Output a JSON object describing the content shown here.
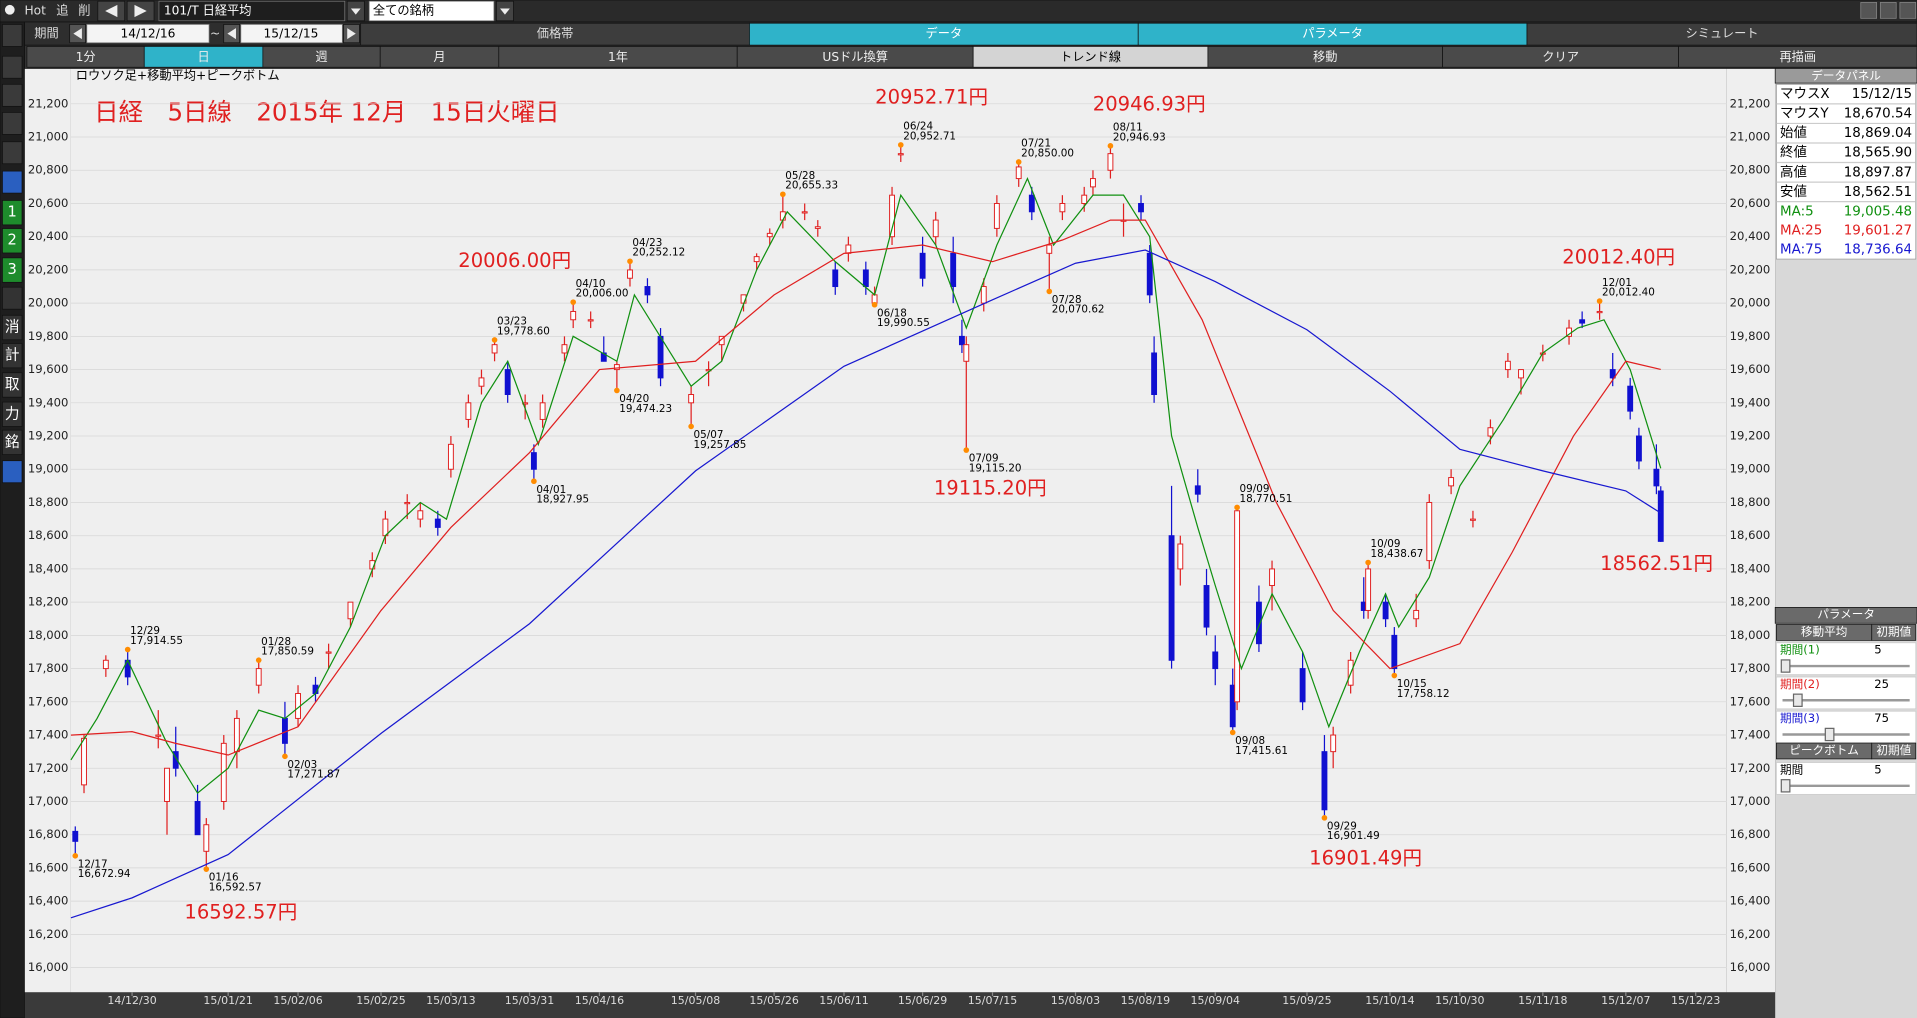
{
  "toolbar": {
    "hot": "Hot",
    "add": "追",
    "del": "削",
    "symbol": "101/T 日経平均",
    "group": "全ての銘柄",
    "period_label": "期間",
    "from": "14/12/16",
    "sep": "~",
    "to": "15/12/15"
  },
  "tabs": [
    "価格帯",
    "データ",
    "パラメータ",
    "シミュレート"
  ],
  "buttons": [
    "1分",
    "日",
    "週",
    "月",
    "1年",
    "USドル換算",
    "トレンド線",
    "移動",
    "クリア",
    "再描画"
  ],
  "side_icons": [
    "1",
    "2",
    "3",
    "消",
    "計",
    "取",
    "力",
    "銘"
  ],
  "chart_data": {
    "type": "candlestick",
    "title": "日経　5日線　2015年 12月　15日火曜日",
    "subtitle": "ロウソク足+移動平均+ピークボトム",
    "xlim": [
      "14/12/16",
      "15/12/30"
    ],
    "ylim": [
      15851,
      21413
    ],
    "grid": true,
    "up_color": "#e02020",
    "down_color": "#1010d0",
    "peak_color": "#ff8c00",
    "xticks": [
      "14/12/30",
      "15/01/21",
      "15/02/06",
      "15/02/25",
      "15/03/13",
      "15/03/31",
      "15/04/16",
      "15/05/08",
      "15/05/26",
      "15/06/11",
      "15/06/29",
      "15/07/15",
      "15/08/03",
      "15/08/19",
      "15/09/04",
      "15/09/25",
      "15/10/14",
      "15/10/30",
      "15/11/18",
      "15/12/07",
      "15/12/23"
    ],
    "yticks": [
      {
        "value": 16000,
        "label": "16,000"
      },
      {
        "value": 16200,
        "label": "16,200"
      },
      {
        "value": 16400,
        "label": "16,400"
      },
      {
        "value": 16600,
        "label": "16,600"
      },
      {
        "value": 16800,
        "label": "16,800"
      },
      {
        "value": 17000,
        "label": "17,000"
      },
      {
        "value": 17200,
        "label": "17,200"
      },
      {
        "value": 17400,
        "label": "17,400"
      },
      {
        "value": 17600,
        "label": "17,600"
      },
      {
        "value": 17800,
        "label": "17,800"
      },
      {
        "value": 18000,
        "label": "18,000"
      },
      {
        "value": 18200,
        "label": "18,200"
      },
      {
        "value": 18400,
        "label": "18,400"
      },
      {
        "value": 18600,
        "label": "18,600"
      },
      {
        "value": 18800,
        "label": "18,800"
      },
      {
        "value": 19000,
        "label": "19,000"
      },
      {
        "value": 19200,
        "label": "19,200"
      },
      {
        "value": 19400,
        "label": "19,400"
      },
      {
        "value": 19600,
        "label": "19,600"
      },
      {
        "value": 19800,
        "label": "19,800"
      },
      {
        "value": 20000,
        "label": "20,000"
      },
      {
        "value": 20200,
        "label": "20,200"
      },
      {
        "value": 20400,
        "label": "20,400"
      },
      {
        "value": 20600,
        "label": "20,600"
      },
      {
        "value": 20800,
        "label": "20,800"
      },
      {
        "value": 21000,
        "label": "21,000"
      },
      {
        "value": 21200,
        "label": "21,200"
      }
    ],
    "x": [
      "14/12/17",
      "14/12/19",
      "14/12/24",
      "14/12/29",
      "15/01/05",
      "15/01/07",
      "15/01/09",
      "15/01/14",
      "15/01/16",
      "15/01/20",
      "15/01/23",
      "15/01/28",
      "15/02/03",
      "15/02/06",
      "15/02/10",
      "15/02/13",
      "15/02/18",
      "15/02/23",
      "15/02/26",
      "15/03/03",
      "15/03/06",
      "15/03/10",
      "15/03/13",
      "15/03/17",
      "15/03/20",
      "15/03/23",
      "15/03/26",
      "15/03/30",
      "15/04/01",
      "15/04/03",
      "15/04/08",
      "15/04/10",
      "15/04/14",
      "15/04/17",
      "15/04/20",
      "15/04/23",
      "15/04/27",
      "15/04/30",
      "15/05/07",
      "15/05/11",
      "15/05/14",
      "15/05/19",
      "15/05/22",
      "15/05/25",
      "15/05/28",
      "15/06/02",
      "15/06/05",
      "15/06/09",
      "15/06/12",
      "15/06/16",
      "15/06/18",
      "15/06/22",
      "15/06/24",
      "15/06/29",
      "15/07/02",
      "15/07/06",
      "15/07/08",
      "15/07/09",
      "15/07/13",
      "15/07/16",
      "15/07/21",
      "15/07/24",
      "15/07/28",
      "15/07/31",
      "15/08/05",
      "15/08/07",
      "15/08/11",
      "15/08/14",
      "15/08/18",
      "15/08/20",
      "15/08/21",
      "15/08/25",
      "15/08/27",
      "15/08/31",
      "15/09/02",
      "15/09/04",
      "15/09/08",
      "15/09/09",
      "15/09/14",
      "15/09/17",
      "15/09/24",
      "15/09/29",
      "15/10/01",
      "15/10/05",
      "15/10/08",
      "15/10/09",
      "15/10/13",
      "15/10/15",
      "15/10/20",
      "15/10/23",
      "15/10/28",
      "15/11/02",
      "15/11/06",
      "15/11/10",
      "15/11/13",
      "15/11/18",
      "15/11/24",
      "15/11/27",
      "15/12/01",
      "15/12/04",
      "15/12/08",
      "15/12/10",
      "15/12/14",
      "15/12/15"
    ],
    "open": [
      16820,
      17100,
      17800,
      17850,
      17400,
      17000,
      17300,
      17000,
      16700,
      17000,
      17300,
      17700,
      17500,
      17500,
      17700,
      17900,
      18100,
      18400,
      18600,
      18800,
      18700,
      18700,
      19000,
      19300,
      19500,
      19700,
      19600,
      19400,
      19100,
      19300,
      19700,
      19900,
      19900,
      19700,
      19600,
      20150,
      20100,
      19800,
      19400,
      19600,
      19750,
      20000,
      20250,
      20400,
      20500,
      20550,
      20450,
      20200,
      20300,
      20200,
      20000,
      20400,
      20900,
      20300,
      20400,
      20300,
      19800,
      19650,
      20000,
      20450,
      20750,
      20650,
      20300,
      20550,
      20600,
      20700,
      20800,
      20500,
      20600,
      20300,
      19700,
      18600,
      18400,
      18900,
      18300,
      17900,
      17700,
      17600,
      18200,
      18300,
      17800,
      17300,
      17300,
      17700,
      18200,
      18150,
      18200,
      18000,
      18100,
      18450,
      18900,
      18700,
      19200,
      19600,
      19550,
      19700,
      19800,
      19900,
      19950,
      19600,
      19500,
      19200,
      19000,
      18869.04
    ],
    "high": [
      16850,
      17400,
      17880,
      17914.55,
      17550,
      17200,
      17450,
      17100,
      16900,
      17400,
      17550,
      17850.59,
      17600,
      17700,
      17750,
      17950,
      18200,
      18500,
      18750,
      18850,
      18800,
      18750,
      19200,
      19450,
      19600,
      19778.6,
      19650,
      19450,
      19150,
      19450,
      19800,
      20006,
      19950,
      19800,
      19650,
      20252.12,
      20150,
      19850,
      19500,
      19650,
      19800,
      20050,
      20300,
      20450,
      20655.33,
      20600,
      20500,
      20250,
      20400,
      20250,
      20100,
      20700,
      20952.71,
      20400,
      20550,
      20400,
      19900,
      19800,
      20150,
      20650,
      20850,
      20700,
      20400,
      20650,
      20700,
      20800,
      20946.93,
      20600,
      20650,
      20350,
      19800,
      18900,
      18600,
      19000,
      18400,
      18000,
      17800,
      18770.51,
      18300,
      18450,
      17900,
      17400,
      17450,
      17900,
      18350,
      18438.67,
      18250,
      18050,
      18250,
      18850,
      19000,
      18750,
      19300,
      19700,
      19600,
      19750,
      19900,
      19950,
      20012.4,
      19700,
      19550,
      19250,
      19150,
      18897.87
    ],
    "low": [
      16672.94,
      17050,
      17750,
      17700,
      17320,
      16800,
      17150,
      16800,
      16592.57,
      16950,
      17200,
      17650,
      17271.87,
      17450,
      17600,
      17800,
      18050,
      18350,
      18550,
      18700,
      18650,
      18600,
      18950,
      19250,
      19450,
      19650,
      19400,
      19300,
      18927.95,
      19250,
      19650,
      19850,
      19850,
      19650,
      19474.23,
      20100,
      20000,
      19500,
      19257.85,
      19500,
      19650,
      19950,
      20200,
      20350,
      20450,
      20500,
      20400,
      20050,
      20250,
      20050,
      19990.55,
      20350,
      20850,
      20100,
      20350,
      20000,
      19700,
      19115.2,
      19950,
      20400,
      20700,
      20500,
      20070.62,
      20500,
      20550,
      20650,
      20750,
      20400,
      20500,
      20000,
      19400,
      17800,
      18300,
      18800,
      18000,
      17700,
      17415.61,
      17550,
      17900,
      18150,
      17550,
      16901.49,
      17200,
      17650,
      18100,
      18100,
      18050,
      17758.12,
      18050,
      18400,
      18850,
      18650,
      19150,
      19550,
      19450,
      19650,
      19750,
      19850,
      19900,
      19500,
      19300,
      19000,
      18850,
      18562.51
    ],
    "close": [
      16760,
      17380,
      17850,
      17750,
      17400,
      17200,
      17200,
      16800,
      16860,
      17350,
      17500,
      17800,
      17350,
      17650,
      17650,
      17900,
      18200,
      18450,
      18700,
      18800,
      18750,
      18650,
      19150,
      19400,
      19550,
      19750,
      19450,
      19400,
      19000,
      19400,
      19750,
      19950,
      19900,
      19650,
      19630,
      20200,
      20050,
      19550,
      19450,
      19600,
      19800,
      20050,
      20280,
      20420,
      20550,
      20550,
      20460,
      20100,
      20350,
      20100,
      20050,
      20650,
      20900,
      20150,
      20500,
      20100,
      19750,
      19750,
      20100,
      20600,
      20820,
      20550,
      20350,
      20600,
      20650,
      20750,
      20900,
      20500,
      20550,
      20050,
      19450,
      17850,
      18550,
      18850,
      18050,
      17800,
      17450,
      18750,
      17950,
      18400,
      17600,
      16950,
      17400,
      17850,
      18150,
      18400,
      18100,
      17800,
      18150,
      18800,
      18950,
      18700,
      19250,
      19650,
      19600,
      19700,
      19850,
      19880,
      19950,
      19550,
      19350,
      19050,
      18900,
      18565.9
    ],
    "series": [
      {
        "name": "MA:5",
        "color": "#109010",
        "x": [
          "14/12/16",
          "14/12/22",
          "14/12/29",
          "15/01/07",
          "15/01/14",
          "15/01/21",
          "15/01/28",
          "15/02/03",
          "15/02/10",
          "15/02/18",
          "15/02/26",
          "15/03/06",
          "15/03/12",
          "15/03/20",
          "15/03/26",
          "15/04/02",
          "15/04/10",
          "15/04/20",
          "15/04/24",
          "15/05/07",
          "15/05/14",
          "15/05/22",
          "15/05/29",
          "15/06/09",
          "15/06/18",
          "15/06/24",
          "15/07/02",
          "15/07/09",
          "15/07/16",
          "15/07/23",
          "15/07/29",
          "15/08/07",
          "15/08/14",
          "15/08/20",
          "15/08/25",
          "15/08/31",
          "15/09/04",
          "15/09/10",
          "15/09/17",
          "15/09/24",
          "15/09/30",
          "15/10/07",
          "15/10/13",
          "15/10/16",
          "15/10/23",
          "15/10/30",
          "15/11/09",
          "15/11/18",
          "15/11/26",
          "15/12/02",
          "15/12/08",
          "15/12/15"
        ],
        "values": [
          17250,
          17500,
          17850,
          17350,
          17050,
          17200,
          17550,
          17500,
          17650,
          18050,
          18600,
          18800,
          18700,
          19400,
          19650,
          19150,
          19800,
          19650,
          20050,
          19500,
          19650,
          20200,
          20550,
          20250,
          20050,
          20650,
          20350,
          19850,
          20350,
          20750,
          20350,
          20650,
          20650,
          20400,
          19200,
          18650,
          18300,
          17800,
          18250,
          17900,
          17450,
          17900,
          18250,
          18050,
          18350,
          18900,
          19300,
          19700,
          19850,
          19900,
          19600,
          19005.48
        ]
      },
      {
        "name": "MA:25",
        "color": "#e02020",
        "x": [
          "14/12/16",
          "14/12/30",
          "15/01/09",
          "15/01/21",
          "15/02/06",
          "15/02/25",
          "15/03/13",
          "15/03/31",
          "15/04/16",
          "15/05/08",
          "15/05/26",
          "15/06/11",
          "15/06/29",
          "15/07/15",
          "15/07/31",
          "15/08/11",
          "15/08/19",
          "15/09/01",
          "15/09/18",
          "15/10/01",
          "15/10/14",
          "15/10/30",
          "15/11/11",
          "15/11/25",
          "15/12/07",
          "15/12/15"
        ],
        "values": [
          17400,
          17420,
          17350,
          17280,
          17450,
          18150,
          18650,
          19100,
          19600,
          19650,
          20050,
          20300,
          20350,
          20250,
          20380,
          20500,
          20500,
          19900,
          18800,
          18150,
          17800,
          17950,
          18500,
          19200,
          19650,
          19601.27
        ]
      },
      {
        "name": "MA:75",
        "color": "#1818d0",
        "x": [
          "14/12/16",
          "14/12/30",
          "15/01/21",
          "15/02/25",
          "15/03/31",
          "15/05/08",
          "15/06/11",
          "15/07/15",
          "15/08/03",
          "15/08/19",
          "15/09/04",
          "15/09/25",
          "15/10/14",
          "15/10/30",
          "15/11/18",
          "15/12/07",
          "15/12/15"
        ],
        "values": [
          16300,
          16420,
          16680,
          17410,
          18070,
          18990,
          19620,
          20020,
          20240,
          20320,
          20130,
          19840,
          19470,
          19120,
          18990,
          18870,
          18736.64
        ]
      }
    ],
    "peaks": [
      {
        "date": "12/17",
        "value": 16672.94,
        "value_label": "16,672.94"
      },
      {
        "date": "12/29",
        "value": 17914.55,
        "value_label": "17,914.55"
      },
      {
        "date": "01/16",
        "value": 16592.57,
        "value_label": "16,592.57"
      },
      {
        "date": "01/28",
        "value": 17850.59,
        "value_label": "17,850.59"
      },
      {
        "date": "02/03",
        "value": 17271.87,
        "value_label": "17,271.87"
      },
      {
        "date": "03/23",
        "value": 19778.6,
        "value_label": "19,778.60"
      },
      {
        "date": "04/01",
        "value": 18927.95,
        "value_label": "18,927.95"
      },
      {
        "date": "04/10",
        "value": 20006,
        "value_label": "20,006.00"
      },
      {
        "date": "04/20",
        "value": 19474.23,
        "value_label": "19,474.23"
      },
      {
        "date": "04/23",
        "value": 20252.12,
        "value_label": "20,252.12"
      },
      {
        "date": "05/07",
        "value": 19257.85,
        "value_label": "19,257.85"
      },
      {
        "date": "05/28",
        "value": 20655.33,
        "value_label": "20,655.33"
      },
      {
        "date": "06/18",
        "value": 19990.55,
        "value_label": "19,990.55"
      },
      {
        "date": "06/24",
        "value": 20952.71,
        "value_label": "20,952.71"
      },
      {
        "date": "07/09",
        "value": 19115.2,
        "value_label": "19,115.20"
      },
      {
        "date": "07/21",
        "value": 20850,
        "value_label": "20,850.00"
      },
      {
        "date": "07/28",
        "value": 20070.62,
        "value_label": "20,070.62"
      },
      {
        "date": "08/11",
        "value": 20946.93,
        "value_label": "20,946.93"
      },
      {
        "date": "09/08",
        "value": 17415.61,
        "value_label": "17,415.61"
      },
      {
        "date": "09/09",
        "value": 18770.51,
        "value_label": "18,770.51"
      },
      {
        "date": "09/29",
        "value": 16901.49,
        "value_label": "16,901.49"
      },
      {
        "date": "10/09",
        "value": 18438.67,
        "value_label": "18,438.67"
      },
      {
        "date": "10/15",
        "value": 17758.12,
        "value_label": "17,758.12"
      },
      {
        "date": "12/01",
        "value": 20012.4,
        "value_label": "20,012.40"
      }
    ],
    "annotations": [
      "20952.71円",
      "20946.93円",
      "20006.00円",
      "19115.20円",
      "20012.40円",
      "18562.51円",
      "16901.49円",
      "16592.57円"
    ]
  },
  "data_panel": {
    "title": "データパネル",
    "rows": [
      [
        "マウスX",
        "15/12/15"
      ],
      [
        "マウスY",
        "18,670.54"
      ],
      [
        "始値",
        "18,869.04"
      ],
      [
        "終値",
        "18,565.90"
      ],
      [
        "高値",
        "18,897.87"
      ],
      [
        "安値",
        "18,562.51"
      ]
    ],
    "ma_values": [
      "19,005.48",
      "19,601.27",
      "18,736.64"
    ]
  },
  "param_panel": {
    "title": "パラメータ",
    "ma_header": "移動平均",
    "init": "初期値",
    "ma_rows": [
      [
        "期間(1)",
        "5"
      ],
      [
        "期間(2)",
        "25"
      ],
      [
        "期間(3)",
        "75"
      ]
    ],
    "peak_header": "ピークボトム",
    "peak_init": "初期値",
    "peak_row": [
      "期間",
      "5"
    ]
  }
}
